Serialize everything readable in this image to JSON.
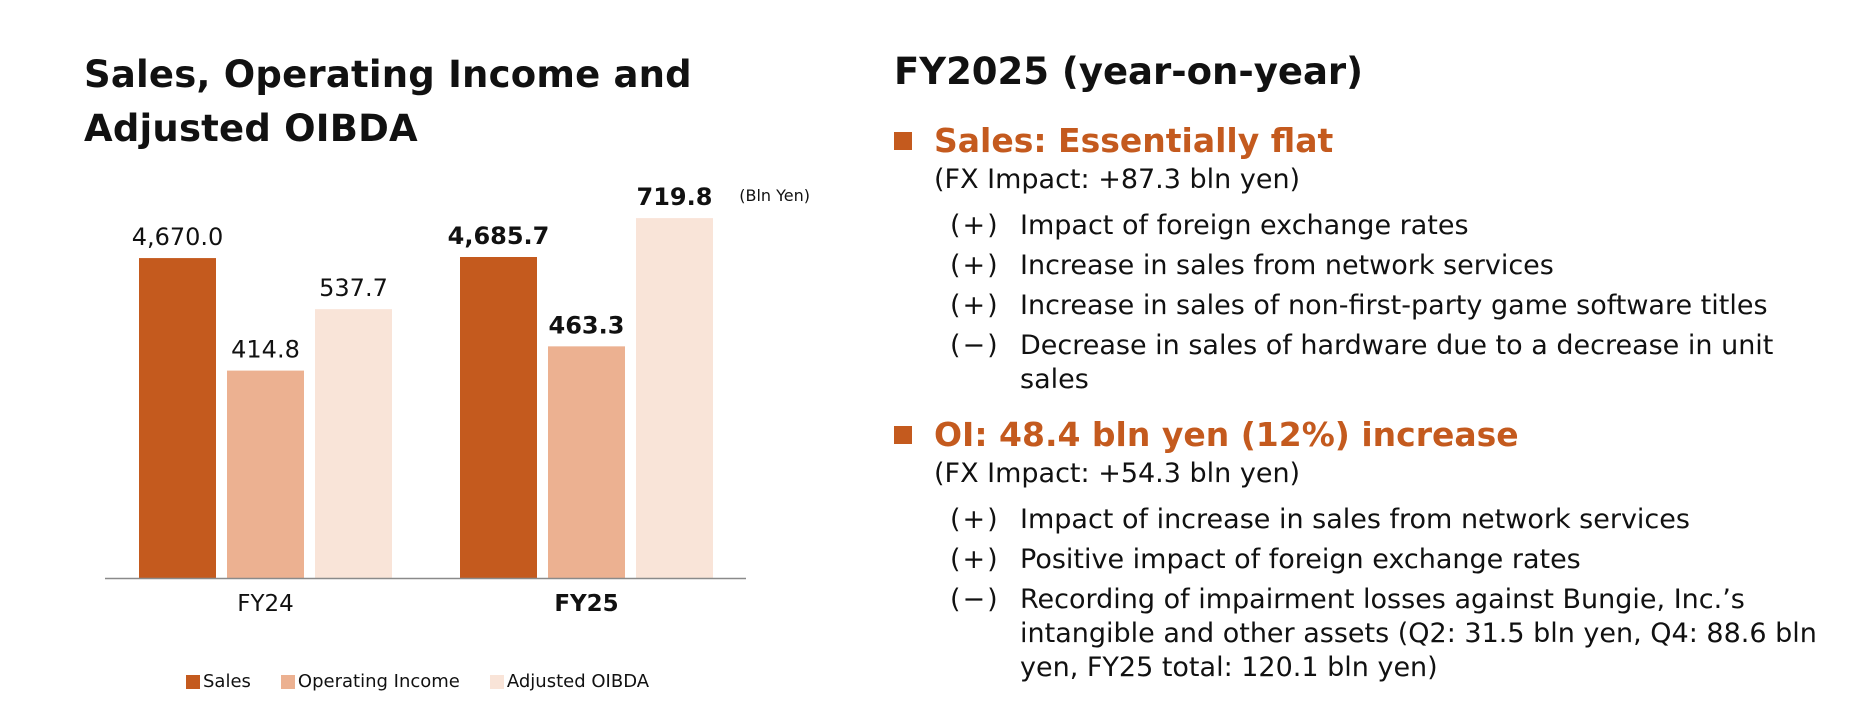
{
  "left_title": "Sales, Operating Income and Adjusted OIBDA",
  "unit_label": "(Bln Yen)",
  "colors": {
    "sales": "#C45A1E",
    "oi": "#ECB191",
    "oibda": "#F9E4D8",
    "accent": "#C45A1E",
    "axis": "#8a8a8a"
  },
  "chart_data": {
    "type": "bar",
    "categories": [
      "FY24",
      "FY25"
    ],
    "category_bold": [
      false,
      true
    ],
    "series": [
      {
        "name": "Sales",
        "values": [
          4670.0,
          4685.7
        ],
        "labels": [
          "4,670.0",
          "4,685.7"
        ]
      },
      {
        "name": "Operating Income",
        "values": [
          414.8,
          463.3
        ],
        "labels": [
          "414.8",
          "463.3"
        ]
      },
      {
        "name": "Adjusted OIBDA",
        "values": [
          537.7,
          719.8
        ],
        "labels": [
          "537.7",
          "719.8"
        ]
      }
    ],
    "label_bold": [
      false,
      true
    ],
    "unit": "(Bln Yen)",
    "legend": "bottom"
  },
  "right": {
    "title": "FY2025 (year-on-year)",
    "sections": [
      {
        "title": "Sales: Essentially flat",
        "fx": "(FX Impact: +87.3 bln yen)",
        "items": [
          {
            "sign": "(+)",
            "text": "Impact of foreign exchange rates"
          },
          {
            "sign": "(+)",
            "text": "Increase in sales from network services"
          },
          {
            "sign": "(+)",
            "text": "Increase in sales of non-first-party game software titles"
          },
          {
            "sign": "(−)",
            "text": "Decrease in sales of hardware due to a decrease in unit sales"
          }
        ]
      },
      {
        "title": "OI: 48.4 bln yen (12%) increase",
        "fx": "(FX Impact: +54.3 bln yen)",
        "items": [
          {
            "sign": "(+)",
            "text": "Impact of increase in sales from network services"
          },
          {
            "sign": "(+)",
            "text": "Positive impact of foreign exchange rates"
          },
          {
            "sign": "(−)",
            "text": "Recording of impairment losses against Bungie, Inc.’s intangible and other assets (Q2: 31.5 bln yen, Q4: 88.6 bln yen, FY25 total: 120.1 bln yen)"
          }
        ]
      }
    ]
  }
}
